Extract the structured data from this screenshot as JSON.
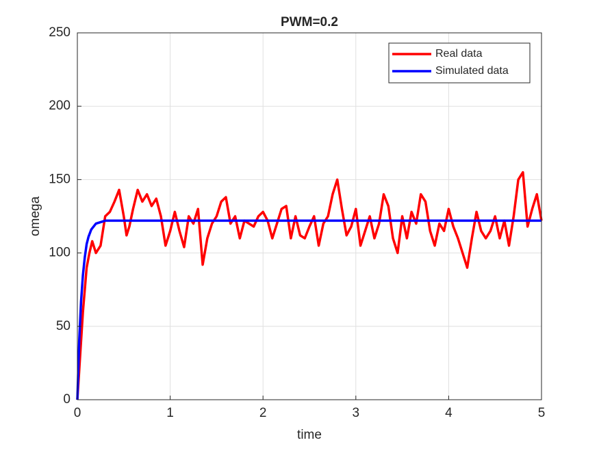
{
  "chart_data": {
    "type": "line",
    "title": "PWM=0.2",
    "x_label": "time",
    "y_label": "omega",
    "xlim": [
      0,
      5
    ],
    "ylim": [
      0,
      250
    ],
    "xticks": [
      0,
      1,
      2,
      3,
      4,
      5
    ],
    "yticks": [
      0,
      50,
      100,
      150,
      200,
      250
    ],
    "grid": true,
    "legend": "top-right",
    "series": [
      {
        "name": "Real data",
        "color": "#ff0000",
        "x": [
          0,
          0.02,
          0.04,
          0.06,
          0.08,
          0.1,
          0.13,
          0.16,
          0.2,
          0.25,
          0.3,
          0.35,
          0.4,
          0.45,
          0.5,
          0.53,
          0.56,
          0.6,
          0.65,
          0.7,
          0.75,
          0.8,
          0.85,
          0.9,
          0.95,
          1.0,
          1.05,
          1.1,
          1.15,
          1.2,
          1.25,
          1.3,
          1.35,
          1.4,
          1.45,
          1.5,
          1.55,
          1.6,
          1.65,
          1.7,
          1.75,
          1.8,
          1.85,
          1.9,
          1.95,
          2.0,
          2.05,
          2.1,
          2.15,
          2.2,
          2.25,
          2.3,
          2.35,
          2.4,
          2.45,
          2.5,
          2.55,
          2.6,
          2.65,
          2.7,
          2.75,
          2.8,
          2.85,
          2.9,
          2.95,
          3.0,
          3.05,
          3.1,
          3.15,
          3.2,
          3.25,
          3.3,
          3.35,
          3.4,
          3.45,
          3.5,
          3.55,
          3.6,
          3.65,
          3.7,
          3.75,
          3.8,
          3.85,
          3.9,
          3.95,
          4.0,
          4.05,
          4.1,
          4.15,
          4.2,
          4.25,
          4.3,
          4.35,
          4.4,
          4.45,
          4.5,
          4.55,
          4.6,
          4.65,
          4.7,
          4.75,
          4.8,
          4.85,
          4.9,
          4.95,
          5.0
        ],
        "values": [
          0,
          20,
          40,
          60,
          75,
          90,
          100,
          108,
          100,
          105,
          125,
          128,
          135,
          143,
          125,
          112,
          118,
          130,
          143,
          135,
          140,
          132,
          137,
          125,
          105,
          115,
          128,
          115,
          104,
          125,
          120,
          130,
          92,
          110,
          120,
          125,
          135,
          138,
          120,
          125,
          110,
          122,
          120,
          118,
          125,
          128,
          122,
          110,
          120,
          130,
          132,
          110,
          125,
          112,
          110,
          118,
          125,
          105,
          120,
          125,
          140,
          150,
          130,
          112,
          118,
          130,
          105,
          115,
          125,
          110,
          120,
          140,
          132,
          110,
          100,
          125,
          110,
          128,
          120,
          140,
          135,
          115,
          105,
          120,
          115,
          130,
          118,
          110,
          100,
          90,
          110,
          128,
          115,
          110,
          115,
          125,
          110,
          122,
          105,
          125,
          150,
          155,
          118,
          130,
          140,
          122
        ]
      },
      {
        "name": "Simulated data",
        "color": "#0000ff",
        "x": [
          0,
          0.02,
          0.04,
          0.06,
          0.08,
          0.1,
          0.12,
          0.15,
          0.2,
          0.25,
          0.3,
          1,
          2,
          3,
          4,
          5
        ],
        "values": [
          0,
          40,
          67,
          85,
          97,
          106,
          111,
          116,
          120,
          121,
          122,
          122,
          122,
          122,
          122,
          122
        ]
      }
    ]
  }
}
